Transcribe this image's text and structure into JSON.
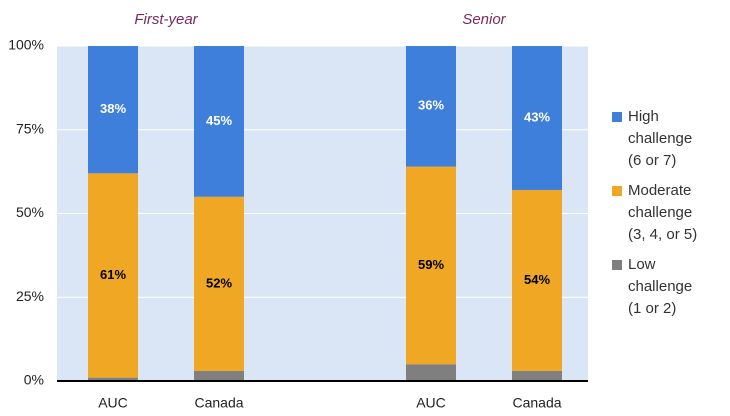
{
  "chart_data": {
    "type": "stacked_bar",
    "groups": [
      "First-year",
      "Senior"
    ],
    "categories": [
      "AUC",
      "Canada",
      "AUC",
      "Canada"
    ],
    "series": [
      {
        "name": "Low challenge (1 or 2)",
        "color": "#7f7f7f",
        "values": [
          1,
          3,
          5,
          3
        ]
      },
      {
        "name": "Moderate challenge (3, 4, or 5)",
        "color": "#f0a824",
        "label_color": "#000000",
        "values": [
          61,
          52,
          59,
          54
        ],
        "value_labels": [
          "61%",
          "52%",
          "59%",
          "54%"
        ]
      },
      {
        "name": "High challenge (6 or 7)",
        "color": "#3f7fdc",
        "label_color": "#ffffff",
        "values": [
          38,
          45,
          36,
          43
        ],
        "value_labels": [
          "38%",
          "45%",
          "36%",
          "43%"
        ]
      }
    ],
    "ylim": [
      0,
      100
    ],
    "yticks": [
      {
        "value": 0,
        "label": "0%"
      },
      {
        "value": 25,
        "label": "25%"
      },
      {
        "value": 50,
        "label": "50%"
      },
      {
        "value": 75,
        "label": "75%"
      },
      {
        "value": 100,
        "label": "100%"
      }
    ],
    "legend": "right"
  }
}
